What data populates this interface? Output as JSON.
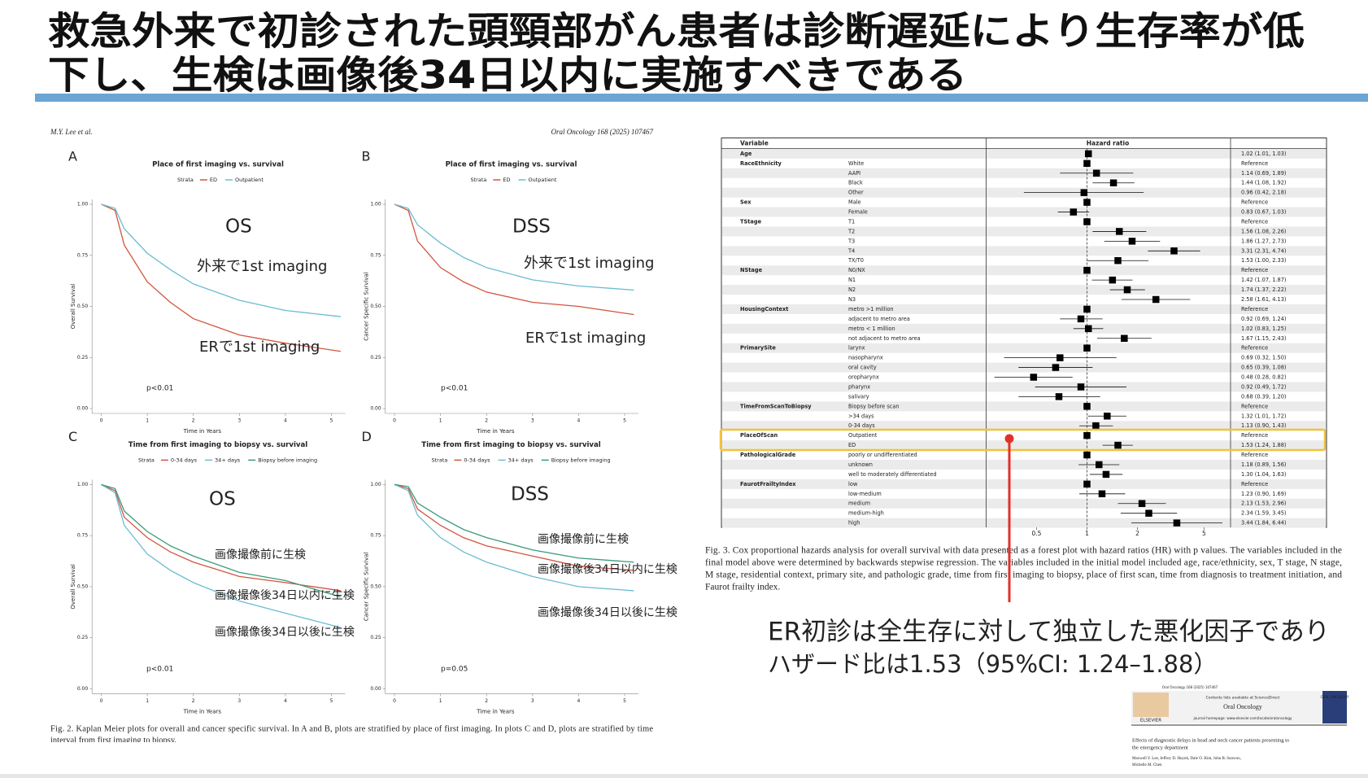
{
  "title": [
    "救急外来で初診された頭頸部がん患者は診断遅延により生存率が低",
    "下し、生検は画像後34日以内に実施すべきである"
  ],
  "figure2": {
    "header_left": "M.Y. Lee et al.",
    "header_right": "Oral Oncology 168 (2025) 107467",
    "panels": [
      {
        "letter": "A",
        "type": "line",
        "title": "Place of first imaging vs. survival",
        "legend_title": "Strata",
        "ylabel": "Overall Survival",
        "xlabel": "Time in Years",
        "xlim": [
          -0.2,
          5.3
        ],
        "ylim": [
          0,
          1
        ],
        "xticks": [
          0,
          1,
          2,
          3,
          4,
          5
        ],
        "yticks": [
          {
            "value": 0,
            "label": "0.00"
          },
          {
            "value": 0.25,
            "label": "0.25"
          },
          {
            "value": 0.5,
            "label": "0.50"
          },
          {
            "value": 0.75,
            "label": "0.75"
          },
          {
            "value": 1,
            "label": "1.00"
          }
        ],
        "x": [
          0,
          0.3,
          0.5,
          1,
          1.5,
          2,
          3,
          4,
          5.2
        ],
        "series": [
          {
            "name": "ED",
            "color": "#d2553f",
            "values": [
              1,
              0.97,
              0.8,
              0.62,
              0.52,
              0.44,
              0.36,
              0.32,
              0.28
            ]
          },
          {
            "name": "Outpatient",
            "color": "#6bbcd1",
            "values": [
              1,
              0.98,
              0.88,
              0.76,
              0.68,
              0.61,
              0.53,
              0.48,
              0.45
            ]
          }
        ],
        "annotations": [
          "OS",
          "外来で1st imaging",
          "ERで1st imaging",
          "p<0.01"
        ]
      },
      {
        "letter": "B",
        "type": "line",
        "title": "Place of first imaging vs. survival",
        "legend_title": "Strata",
        "ylabel": "Cancer Specific Survival",
        "xlabel": "Time in Years",
        "xlim": [
          -0.2,
          5.3
        ],
        "ylim": [
          0,
          1
        ],
        "xticks": [
          0,
          1,
          2,
          3,
          4,
          5
        ],
        "yticks": [
          {
            "value": 0,
            "label": "0.00"
          },
          {
            "value": 0.25,
            "label": "0.25"
          },
          {
            "value": 0.5,
            "label": "0.50"
          },
          {
            "value": 0.75,
            "label": "0.75"
          },
          {
            "value": 1,
            "label": "1.00"
          }
        ],
        "x": [
          0,
          0.3,
          0.5,
          1,
          1.5,
          2,
          3,
          4,
          5.2
        ],
        "series": [
          {
            "name": "ED",
            "color": "#d2553f",
            "values": [
              1,
              0.97,
              0.82,
              0.69,
              0.62,
              0.57,
              0.52,
              0.5,
              0.46
            ]
          },
          {
            "name": "Outpatient",
            "color": "#6bbcd1",
            "values": [
              1,
              0.98,
              0.9,
              0.81,
              0.74,
              0.69,
              0.63,
              0.6,
              0.58
            ]
          }
        ],
        "annotations": [
          "DSS",
          "外来で1st imaging",
          "ERで1st imaging",
          "p<0.01"
        ]
      },
      {
        "letter": "C",
        "type": "line",
        "title": "Time from first imaging to biopsy vs. survival",
        "legend_title": "Strata",
        "ylabel": "Overall Survival",
        "xlabel": "Time in Years",
        "xlim": [
          -0.2,
          5.3
        ],
        "ylim": [
          0,
          1
        ],
        "xticks": [
          0,
          1,
          2,
          3,
          4,
          5
        ],
        "yticks": [
          {
            "value": 0,
            "label": "0.00"
          },
          {
            "value": 0.25,
            "label": "0.25"
          },
          {
            "value": 0.5,
            "label": "0.50"
          },
          {
            "value": 0.75,
            "label": "0.75"
          },
          {
            "value": 1,
            "label": "1.00"
          }
        ],
        "x": [
          0,
          0.3,
          0.5,
          1,
          1.5,
          2,
          3,
          4,
          5.2
        ],
        "series": [
          {
            "name": "0-34 days",
            "color": "#d2553f",
            "values": [
              1,
              0.97,
              0.84,
              0.74,
              0.67,
              0.62,
              0.55,
              0.52,
              0.48
            ]
          },
          {
            "name": "34+ days",
            "color": "#6bbcd1",
            "values": [
              1,
              0.96,
              0.8,
              0.66,
              0.58,
              0.52,
              0.43,
              0.37,
              0.3
            ]
          },
          {
            "name": "Biopsy before imaging",
            "color": "#3a9a7a",
            "values": [
              1,
              0.98,
              0.87,
              0.77,
              0.7,
              0.65,
              0.57,
              0.53,
              0.45
            ]
          }
        ],
        "annotations": [
          "OS",
          "画像撮像前に生検",
          "画像撮像後34日以内に生検",
          "画像撮像後34日以後に生検",
          "p<0.01"
        ]
      },
      {
        "letter": "D",
        "type": "line",
        "title": "Time from first imaging to biopsy vs. survival",
        "legend_title": "Strata",
        "ylabel": "Cancer Specific Survival",
        "xlabel": "Time in Years",
        "xlim": [
          -0.2,
          5.3
        ],
        "ylim": [
          0,
          1
        ],
        "xticks": [
          0,
          1,
          2,
          3,
          4,
          5
        ],
        "yticks": [
          {
            "value": 0,
            "label": "0.00"
          },
          {
            "value": 0.25,
            "label": "0.25"
          },
          {
            "value": 0.5,
            "label": "0.50"
          },
          {
            "value": 0.75,
            "label": "0.75"
          },
          {
            "value": 1,
            "label": "1.00"
          }
        ],
        "x": [
          0,
          0.3,
          0.5,
          1,
          1.5,
          2,
          3,
          4,
          5.2
        ],
        "series": [
          {
            "name": "0-34 days",
            "color": "#d2553f",
            "values": [
              1,
              0.98,
              0.88,
              0.8,
              0.74,
              0.7,
              0.65,
              0.6,
              0.58
            ]
          },
          {
            "name": "34+ days",
            "color": "#6bbcd1",
            "values": [
              1,
              0.97,
              0.85,
              0.74,
              0.67,
              0.62,
              0.55,
              0.5,
              0.48
            ]
          },
          {
            "name": "Biopsy before imaging",
            "color": "#3a9a7a",
            "values": [
              1,
              0.99,
              0.91,
              0.84,
              0.78,
              0.74,
              0.68,
              0.64,
              0.62
            ]
          }
        ],
        "annotations": [
          "DSS",
          "画像撮像前に生検",
          "画像撮像後34日以内に生検",
          "画像撮像後34日以後に生検",
          "p=0.05"
        ]
      }
    ],
    "caption": [
      "Fig. 2. Kaplan Meier plots for overall and cancer specific survival. In A and B, plots are stratified by place of first imaging. In plots C and D, plots are stratified by time",
      "interval from first imaging to biopsy."
    ]
  },
  "figure3": {
    "type": "forest",
    "header": [
      "Variable",
      "Hazard ratio"
    ],
    "log": true,
    "xlim": [
      0.25,
      7.2
    ],
    "xticks": [
      0.5,
      1,
      2,
      5
    ],
    "groups": [
      {
        "variable": "Age",
        "rows": [
          {
            "hr": 1.02,
            "lo": 1.01,
            "hi": 1.03,
            "label": "1.02 (1.01, 1.03)"
          }
        ]
      },
      {
        "variable": "RaceEthnicity",
        "rows": [
          {
            "level": "White",
            "hr": 1,
            "label": "Reference"
          },
          {
            "level": "AAPI",
            "hr": 1.14,
            "lo": 0.69,
            "hi": 1.89,
            "label": "1.14 (0.69, 1.89)"
          },
          {
            "level": "Black",
            "hr": 1.44,
            "lo": 1.08,
            "hi": 1.92,
            "label": "1.44 (1.08, 1.92)"
          },
          {
            "level": "Other",
            "hr": 0.96,
            "lo": 0.42,
            "hi": 2.18,
            "label": "0.96 (0.42, 2.18)"
          }
        ]
      },
      {
        "variable": "Sex",
        "rows": [
          {
            "level": "Male",
            "hr": 1,
            "label": "Reference"
          },
          {
            "level": "Female",
            "hr": 0.83,
            "lo": 0.67,
            "hi": 1.03,
            "label": "0.83 (0.67, 1.03)"
          }
        ]
      },
      {
        "variable": "TStage",
        "rows": [
          {
            "level": "T1",
            "hr": 1,
            "label": "Reference"
          },
          {
            "level": "T2",
            "hr": 1.56,
            "lo": 1.08,
            "hi": 2.26,
            "label": "1.56 (1.08, 2.26)"
          },
          {
            "level": "T3",
            "hr": 1.86,
            "lo": 1.27,
            "hi": 2.73,
            "label": "1.86 (1.27, 2.73)"
          },
          {
            "level": "T4",
            "hr": 3.31,
            "lo": 2.31,
            "hi": 4.74,
            "label": "3.31 (2.31, 4.74)"
          },
          {
            "level": "TX/T0",
            "hr": 1.53,
            "lo": 1.0,
            "hi": 2.33,
            "label": "1.53 (1.00, 2.33)"
          }
        ]
      },
      {
        "variable": "NStage",
        "rows": [
          {
            "level": "N0/NX",
            "hr": 1,
            "label": "Reference"
          },
          {
            "level": "N1",
            "hr": 1.42,
            "lo": 1.07,
            "hi": 1.87,
            "label": "1.42 (1.07, 1.87)"
          },
          {
            "level": "N2",
            "hr": 1.74,
            "lo": 1.37,
            "hi": 2.22,
            "label": "1.74 (1.37, 2.22)"
          },
          {
            "level": "N3",
            "hr": 2.58,
            "lo": 1.61,
            "hi": 4.13,
            "label": "2.58 (1.61, 4.13)"
          }
        ]
      },
      {
        "variable": "HousingContext",
        "rows": [
          {
            "level": "metro >1 million",
            "hr": 1,
            "label": "Reference"
          },
          {
            "level": "adjacent to metro area",
            "hr": 0.92,
            "lo": 0.69,
            "hi": 1.24,
            "label": "0.92 (0.69, 1.24)"
          },
          {
            "level": "metro < 1 million",
            "hr": 1.02,
            "lo": 0.83,
            "hi": 1.25,
            "label": "1.02 (0.83, 1.25)"
          },
          {
            "level": "not adjacent to metro area",
            "hr": 1.67,
            "lo": 1.15,
            "hi": 2.43,
            "label": "1.67 (1.15, 2.43)"
          }
        ]
      },
      {
        "variable": "PrimarySite",
        "rows": [
          {
            "level": "larynx",
            "hr": 1,
            "label": "Reference"
          },
          {
            "level": "nasopharynx",
            "hr": 0.69,
            "lo": 0.32,
            "hi": 1.5,
            "label": "0.69 (0.32, 1.50)"
          },
          {
            "level": "oral cavity",
            "hr": 0.65,
            "lo": 0.39,
            "hi": 1.08,
            "label": "0.65 (0.39, 1.08)"
          },
          {
            "level": "oropharynx",
            "hr": 0.48,
            "lo": 0.28,
            "hi": 0.82,
            "label": "0.48 (0.28, 0.82)"
          },
          {
            "level": "pharynx",
            "hr": 0.92,
            "lo": 0.49,
            "hi": 1.72,
            "label": "0.92 (0.49, 1.72)"
          },
          {
            "level": "salivary",
            "hr": 0.68,
            "lo": 0.39,
            "hi": 1.2,
            "label": "0.68 (0.39, 1.20)"
          }
        ]
      },
      {
        "variable": "TimeFromScanToBiopsy",
        "rows": [
          {
            "level": "Biopsy before scan",
            "hr": 1,
            "label": "Reference"
          },
          {
            "level": ">34 days",
            "hr": 1.32,
            "lo": 1.01,
            "hi": 1.72,
            "label": "1.32 (1.01, 1.72)"
          },
          {
            "level": "0-34 days",
            "hr": 1.13,
            "lo": 0.9,
            "hi": 1.43,
            "label": "1.13 (0.90, 1.43)"
          }
        ]
      },
      {
        "variable": "PlaceOfScan",
        "rows": [
          {
            "level": "Outpatient",
            "hr": 1,
            "label": "Reference"
          },
          {
            "level": "ED",
            "hr": 1.53,
            "lo": 1.24,
            "hi": 1.88,
            "label": "1.53 (1.24, 1.88)"
          }
        ]
      },
      {
        "variable": "PathologicalGrade",
        "rows": [
          {
            "level": "poorly or undifferentiated",
            "hr": 1,
            "label": "Reference"
          },
          {
            "level": "unknown",
            "hr": 1.18,
            "lo": 0.89,
            "hi": 1.56,
            "label": "1.18 (0.89, 1.56)"
          },
          {
            "level": "well to moderately differentiated",
            "hr": 1.3,
            "lo": 1.04,
            "hi": 1.63,
            "label": "1.30 (1.04, 1.63)"
          }
        ]
      },
      {
        "variable": "FaurotFrailtyIndex",
        "rows": [
          {
            "level": "low",
            "hr": 1,
            "label": "Reference"
          },
          {
            "level": "low-medium",
            "hr": 1.23,
            "lo": 0.9,
            "hi": 1.69,
            "label": "1.23 (0.90, 1.69)"
          },
          {
            "level": "medium",
            "hr": 2.13,
            "lo": 1.53,
            "hi": 2.96,
            "label": "2.13 (1.53, 2.96)"
          },
          {
            "level": "medium-high",
            "hr": 2.34,
            "lo": 1.59,
            "hi": 3.45,
            "label": "2.34 (1.59, 3.45)"
          },
          {
            "level": "high",
            "hr": 3.44,
            "lo": 1.84,
            "hi": 6.44,
            "label": "3.44 (1.84, 6.44)"
          }
        ]
      }
    ],
    "caption": [
      "Fig. 3. Cox proportional hazards analysis for overall survival with data presented as a forest plot with hazard ratios (HR) with p values. The variables included in the",
      "final model above were determined by backwards stepwise regression. The variables included in the initial model included age, race/ethnicity, sex, T stage, N stage,",
      "M stage, residential context, primary site, and pathologic grade, time from first imaging to biopsy, place of first scan, time from diagnosis to treatment initiation, and",
      "Faurot frailty index."
    ]
  },
  "conclusion": [
    "ER初診は全生存に対して独立した悪化因子であり",
    "ハザード比は1.53（95%CI: 1.24–1.88）"
  ],
  "thumbnail": {
    "journal_ref": "Oral Oncology 168 (2025) 107467",
    "contents": "Contents lists available at ScienceDirect",
    "journal": "Oral Oncology",
    "homepage": "journal homepage: www.elsevier.com/locate/oraloncology",
    "publisher": "ELSEVIER",
    "cover": "ORAL ONCOLOGY",
    "article_title": [
      "Effects of diagnostic delays in head and neck cancer patients presenting to",
      "the emergency department"
    ],
    "authors": [
      "Maxwell Y. Lee, Jeffrey D. Huynh, Dale O. Kim, John B. Sunwoo,",
      "Michelle M. Chen"
    ]
  }
}
